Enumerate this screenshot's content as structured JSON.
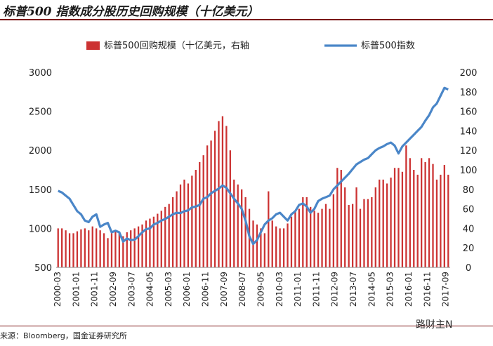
{
  "title": "标普500 指数成分股历史回购规模（十亿美元）",
  "source": "来源：Bloomberg，国金证券研究所",
  "watermark": "路财主N",
  "chart_data": {
    "type": "bar+line",
    "left_axis": {
      "ylim": [
        500,
        3000
      ],
      "ticks": [
        500,
        1000,
        1500,
        2000,
        2500,
        3000
      ]
    },
    "right_axis": {
      "ylim": [
        0,
        200
      ],
      "ticks": [
        0,
        20,
        40,
        60,
        80,
        100,
        120,
        140,
        160,
        180,
        200
      ]
    },
    "x_tick_labels": [
      "2000-03",
      "2001-01",
      "2001-11",
      "2002-09",
      "2003-07",
      "2004-05",
      "2005-03",
      "2006-01",
      "2006-11",
      "2007-09",
      "2008-07",
      "2009-05",
      "2010-03",
      "2011-01",
      "2011-11",
      "2012-09",
      "2013-07",
      "2014-05",
      "2015-03",
      "2016-01",
      "2016-11",
      "2017-09"
    ],
    "legend_position": "top",
    "colors": {
      "bars": "#cc3333",
      "line": "#4a86c8"
    },
    "series": [
      {
        "name": "标普500回购规模（十亿美元，右轴",
        "axis": "right",
        "type": "bar",
        "values": [
          40,
          40,
          38,
          35,
          35,
          37,
          39,
          40,
          38,
          42,
          40,
          38,
          35,
          30,
          35,
          38,
          36,
          32,
          36,
          38,
          40,
          42,
          44,
          48,
          50,
          52,
          55,
          58,
          62,
          65,
          72,
          78,
          85,
          90,
          86,
          94,
          100,
          108,
          115,
          125,
          130,
          140,
          150,
          155,
          145,
          120,
          90,
          85,
          80,
          72,
          60,
          48,
          44,
          40,
          35,
          78,
          48,
          42,
          40,
          40,
          45,
          52,
          58,
          60,
          72,
          72,
          62,
          58,
          56,
          60,
          65,
          60,
          75,
          102,
          100,
          82,
          64,
          65,
          82,
          60,
          70,
          70,
          72,
          82,
          90,
          90,
          86,
          92,
          102,
          102,
          98,
          125,
          112,
          100,
          95,
          112,
          108,
          112,
          106,
          90,
          95,
          105,
          95
        ]
      },
      {
        "name": "标普500指数",
        "axis": "left",
        "type": "line",
        "values": [
          1480,
          1460,
          1420,
          1380,
          1300,
          1220,
          1180,
          1100,
          1080,
          1150,
          1180,
          1020,
          1050,
          1070,
          950,
          970,
          950,
          830,
          870,
          850,
          855,
          900,
          950,
          990,
          1000,
          1050,
          1070,
          1100,
          1120,
          1150,
          1180,
          1200,
          1195,
          1220,
          1230,
          1270,
          1280,
          1300,
          1380,
          1400,
          1450,
          1480,
          1510,
          1550,
          1520,
          1450,
          1380,
          1320,
          1250,
          1100,
          900,
          800,
          850,
          950,
          1050,
          1100,
          1130,
          1180,
          1200,
          1150,
          1100,
          1180,
          1220,
          1300,
          1320,
          1280,
          1200,
          1250,
          1350,
          1380,
          1400,
          1420,
          1500,
          1550,
          1600,
          1650,
          1700,
          1760,
          1820,
          1850,
          1880,
          1900,
          1950,
          2000,
          2030,
          2050,
          2080,
          2100,
          2060,
          1960,
          2050,
          2100,
          2150,
          2200,
          2250,
          2300,
          2380,
          2450,
          2550,
          2600,
          2700,
          2800,
          2780
        ]
      }
    ]
  },
  "legend": {
    "bar_label": "标普500回购规模（十亿美元，右轴",
    "line_label": "标普500指数"
  }
}
